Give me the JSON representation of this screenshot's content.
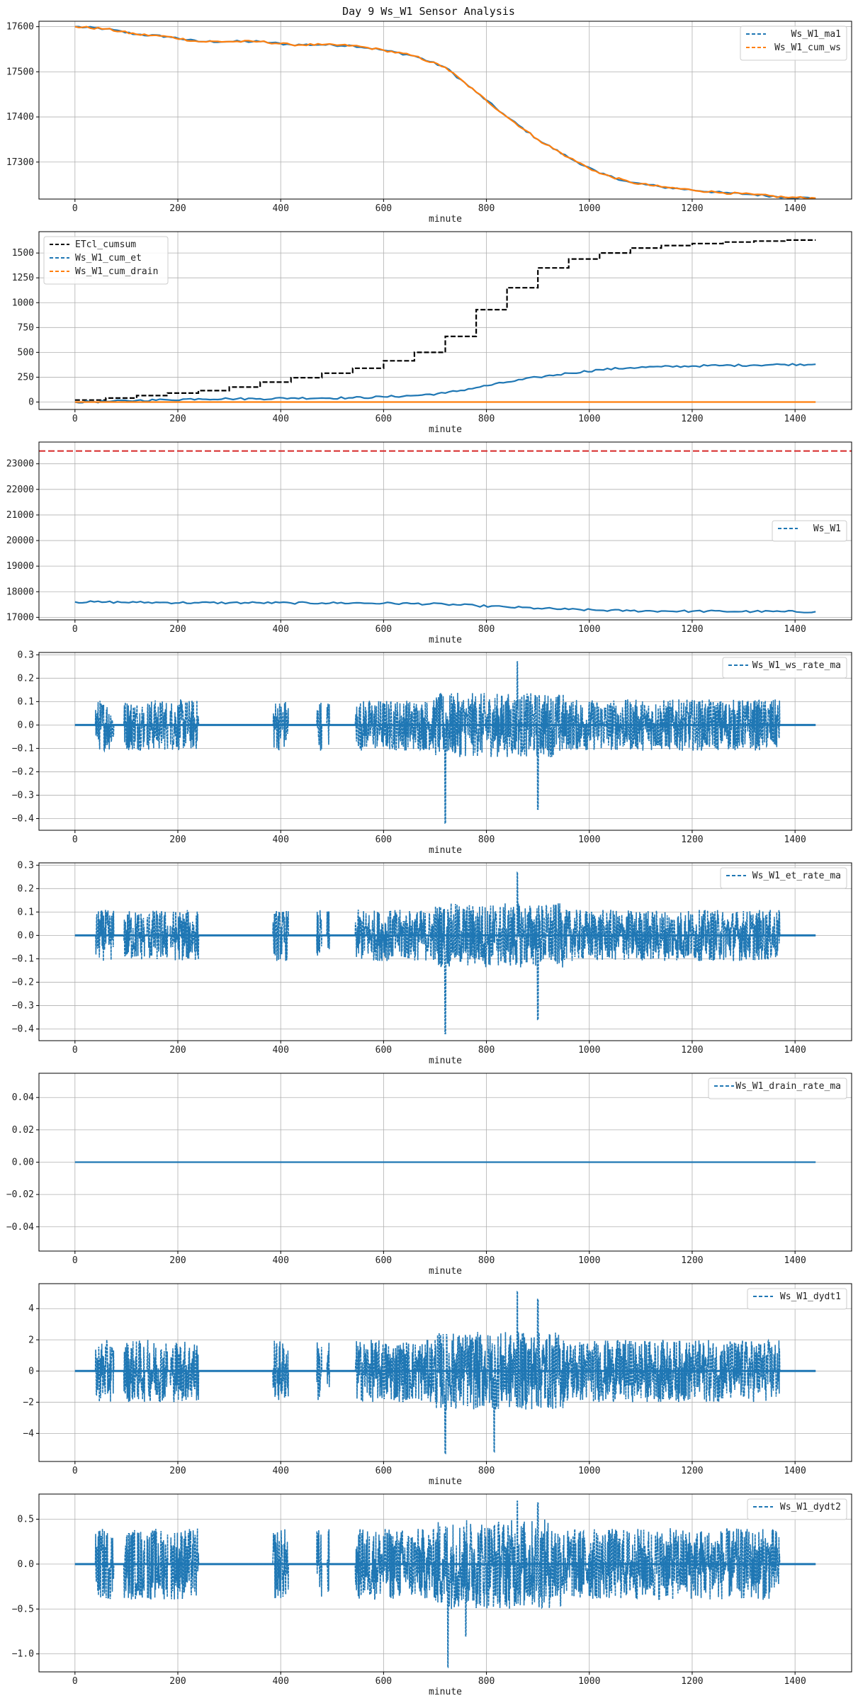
{
  "figure": {
    "title": "Day 9 Ws_W1 Sensor Analysis"
  },
  "chart_data": [
    {
      "type": "line",
      "xlabel": "minute",
      "xlim": [
        -70,
        1510
      ],
      "ylim": [
        17218,
        17612
      ],
      "xticks": [
        0,
        200,
        400,
        600,
        800,
        1000,
        1200,
        1400
      ],
      "yticks": [
        17300,
        17400,
        17500,
        17600
      ],
      "grid": true,
      "legend": "top-right",
      "series": [
        {
          "name": "Ws_W1_ma1",
          "color": "#1f77b4",
          "style": "dashed",
          "x": [
            0,
            60,
            120,
            180,
            240,
            300,
            360,
            420,
            480,
            540,
            600,
            660,
            720,
            780,
            840,
            900,
            960,
            1020,
            1080,
            1140,
            1200,
            1260,
            1320,
            1380,
            1440
          ],
          "y": [
            17600,
            17595,
            17583,
            17578,
            17567,
            17567,
            17567,
            17560,
            17560,
            17558,
            17548,
            17535,
            17510,
            17455,
            17400,
            17350,
            17310,
            17275,
            17255,
            17245,
            17238,
            17232,
            17228,
            17222,
            17220
          ]
        },
        {
          "name": "Ws_W1_cum_ws",
          "color": "#ff7f0e",
          "style": "dashed",
          "x": [
            0,
            60,
            120,
            180,
            240,
            300,
            360,
            420,
            480,
            540,
            600,
            660,
            720,
            780,
            840,
            900,
            960,
            1020,
            1080,
            1140,
            1200,
            1260,
            1320,
            1380,
            1440
          ],
          "y": [
            17600,
            17595,
            17583,
            17578,
            17567,
            17567,
            17567,
            17560,
            17560,
            17558,
            17548,
            17535,
            17510,
            17455,
            17400,
            17350,
            17310,
            17275,
            17255,
            17245,
            17238,
            17232,
            17228,
            17222,
            17220
          ]
        }
      ]
    },
    {
      "type": "line",
      "xlabel": "minute",
      "xlim": [
        -70,
        1510
      ],
      "ylim": [
        -75,
        1715
      ],
      "xticks": [
        0,
        200,
        400,
        600,
        800,
        1000,
        1200,
        1400
      ],
      "yticks": [
        0,
        250,
        500,
        750,
        1000,
        1250,
        1500
      ],
      "grid": true,
      "legend": "top-left",
      "series": [
        {
          "name": "ETcl_cumsum",
          "color": "#000000",
          "style": "dashed",
          "step": true,
          "x": [
            0,
            60,
            120,
            180,
            240,
            300,
            360,
            420,
            480,
            540,
            600,
            660,
            720,
            780,
            840,
            900,
            960,
            1020,
            1080,
            1140,
            1200,
            1260,
            1320,
            1380,
            1440
          ],
          "y": [
            20,
            40,
            65,
            90,
            115,
            150,
            200,
            245,
            290,
            340,
            415,
            500,
            660,
            930,
            1150,
            1350,
            1440,
            1500,
            1550,
            1575,
            1595,
            1610,
            1620,
            1630,
            1630
          ]
        },
        {
          "name": "Ws_W1_cum_et",
          "color": "#1f77b4",
          "style": "dashed",
          "x": [
            0,
            60,
            120,
            180,
            240,
            300,
            360,
            420,
            480,
            540,
            600,
            660,
            720,
            780,
            840,
            900,
            960,
            1020,
            1080,
            1140,
            1200,
            1260,
            1320,
            1380,
            1440
          ],
          "y": [
            0,
            5,
            16,
            22,
            33,
            33,
            33,
            40,
            40,
            42,
            52,
            65,
            90,
            145,
            200,
            250,
            290,
            325,
            345,
            355,
            362,
            368,
            372,
            378,
            380
          ]
        },
        {
          "name": "Ws_W1_cum_drain",
          "color": "#ff7f0e",
          "style": "dashed",
          "x": [
            0,
            1440
          ],
          "y": [
            0,
            0
          ]
        }
      ]
    },
    {
      "type": "line",
      "xlabel": "minute",
      "xlim": [
        -70,
        1510
      ],
      "ylim": [
        16900,
        23850
      ],
      "xticks": [
        0,
        200,
        400,
        600,
        800,
        1000,
        1200,
        1400
      ],
      "yticks": [
        17000,
        18000,
        19000,
        20000,
        21000,
        22000,
        23000
      ],
      "grid": true,
      "legend": "center-right",
      "hline": {
        "y": 23500,
        "color": "#d62728",
        "style": "dashed"
      },
      "series": [
        {
          "name": "Ws_W1",
          "color": "#1f77b4",
          "style": "dashed",
          "x": [
            0,
            60,
            120,
            180,
            240,
            300,
            360,
            420,
            480,
            540,
            600,
            660,
            720,
            780,
            840,
            900,
            960,
            1020,
            1080,
            1140,
            1200,
            1260,
            1320,
            1380,
            1440
          ],
          "y": [
            17600,
            17595,
            17583,
            17578,
            17567,
            17567,
            17567,
            17560,
            17560,
            17558,
            17548,
            17535,
            17510,
            17455,
            17400,
            17350,
            17310,
            17275,
            17255,
            17245,
            17238,
            17232,
            17228,
            17222,
            17220
          ]
        }
      ]
    },
    {
      "type": "line",
      "xlabel": "minute",
      "xlim": [
        -70,
        1510
      ],
      "ylim": [
        -0.45,
        0.31
      ],
      "xticks": [
        0,
        200,
        400,
        600,
        800,
        1000,
        1200,
        1400
      ],
      "yticks": [
        -0.4,
        -0.3,
        -0.2,
        -0.1,
        0.0,
        0.1,
        0.2,
        0.3
      ],
      "grid": true,
      "legend": "top-right",
      "series": [
        {
          "name": "Ws_W1_ws_rate_ma",
          "color": "#1f77b4",
          "style": "dashed",
          "noise": {
            "active": [
              [
                40,
                75
              ],
              [
                95,
                135
              ],
              [
                140,
                180
              ],
              [
                185,
                240
              ],
              [
                385,
                415
              ],
              [
                470,
                480
              ],
              [
                490,
                495
              ],
              [
                545,
                1370
              ]
            ],
            "base_amp": 0.11,
            "peak": [
              [
                720,
                -0.42
              ],
              [
                860,
                0.27
              ],
              [
                900,
                0.22
              ],
              [
                900,
                -0.36
              ]
            ]
          }
        }
      ]
    },
    {
      "type": "line",
      "xlabel": "minute",
      "xlim": [
        -70,
        1510
      ],
      "ylim": [
        -0.45,
        0.31
      ],
      "xticks": [
        0,
        200,
        400,
        600,
        800,
        1000,
        1200,
        1400
      ],
      "yticks": [
        -0.4,
        -0.3,
        -0.2,
        -0.1,
        0.0,
        0.1,
        0.2,
        0.3
      ],
      "grid": true,
      "legend": "top-right",
      "series": [
        {
          "name": "Ws_W1_et_rate_ma",
          "color": "#1f77b4",
          "style": "dashed",
          "noise": {
            "active": [
              [
                40,
                75
              ],
              [
                95,
                135
              ],
              [
                140,
                180
              ],
              [
                185,
                240
              ],
              [
                385,
                415
              ],
              [
                470,
                480
              ],
              [
                490,
                495
              ],
              [
                545,
                1370
              ]
            ],
            "base_amp": 0.11,
            "peak": [
              [
                720,
                -0.42
              ],
              [
                860,
                0.27
              ],
              [
                900,
                0.22
              ],
              [
                900,
                -0.36
              ]
            ]
          }
        }
      ]
    },
    {
      "type": "line",
      "xlabel": "minute",
      "xlim": [
        -70,
        1510
      ],
      "ylim": [
        -0.055,
        0.055
      ],
      "xticks": [
        0,
        200,
        400,
        600,
        800,
        1000,
        1200,
        1400
      ],
      "yticks": [
        -0.04,
        -0.02,
        0.0,
        0.02,
        0.04
      ],
      "grid": true,
      "legend": "top-right",
      "series": [
        {
          "name": "Ws_W1_drain_rate_ma",
          "color": "#1f77b4",
          "style": "dashed",
          "x": [
            0,
            1440
          ],
          "y": [
            0,
            0
          ]
        }
      ]
    },
    {
      "type": "line",
      "xlabel": "minute",
      "xlim": [
        -70,
        1510
      ],
      "ylim": [
        -5.8,
        5.6
      ],
      "xticks": [
        0,
        200,
        400,
        600,
        800,
        1000,
        1200,
        1400
      ],
      "yticks": [
        -4,
        -2,
        0,
        2,
        4
      ],
      "grid": true,
      "legend": "top-right",
      "series": [
        {
          "name": "Ws_W1_dydt1",
          "color": "#1f77b4",
          "style": "dashed",
          "noise": {
            "active": [
              [
                40,
                75
              ],
              [
                95,
                135
              ],
              [
                140,
                180
              ],
              [
                185,
                240
              ],
              [
                385,
                415
              ],
              [
                470,
                480
              ],
              [
                490,
                495
              ],
              [
                545,
                1370
              ]
            ],
            "base_amp": 2.0,
            "peak": [
              [
                720,
                -5.3
              ],
              [
                860,
                5.1
              ],
              [
                815,
                -5.2
              ],
              [
                900,
                4.6
              ]
            ]
          }
        }
      ]
    },
    {
      "type": "line",
      "xlabel": "minute",
      "xlim": [
        -70,
        1510
      ],
      "ylim": [
        -1.2,
        0.78
      ],
      "xticks": [
        0,
        200,
        400,
        600,
        800,
        1000,
        1200,
        1400
      ],
      "yticks": [
        -1.0,
        -0.5,
        0.0,
        0.5
      ],
      "grid": true,
      "legend": "top-right",
      "series": [
        {
          "name": "Ws_W1_dydt2",
          "color": "#1f77b4",
          "style": "dashed",
          "noise": {
            "active": [
              [
                40,
                75
              ],
              [
                95,
                135
              ],
              [
                140,
                180
              ],
              [
                185,
                240
              ],
              [
                385,
                415
              ],
              [
                470,
                480
              ],
              [
                490,
                495
              ],
              [
                545,
                1370
              ]
            ],
            "base_amp": 0.4,
            "peak": [
              [
                725,
                -1.15
              ],
              [
                860,
                0.7
              ],
              [
                900,
                0.68
              ],
              [
                760,
                -0.8
              ]
            ]
          }
        }
      ]
    }
  ]
}
